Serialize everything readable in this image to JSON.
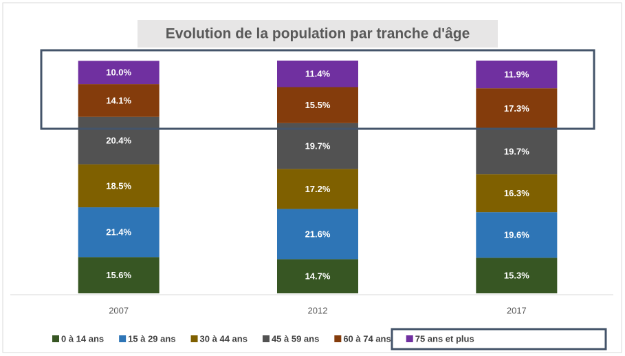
{
  "chart_data": {
    "type": "stacked_bar",
    "title": "Evolution de la population par tranche d'âge",
    "categories": [
      "2007",
      "2012",
      "2017"
    ],
    "series": [
      {
        "name": "0 à 14 ans",
        "color": "#375623",
        "values": [
          15.6,
          14.7,
          15.3
        ],
        "value_labels": [
          "15.6%",
          "14.7%",
          "15.3%"
        ]
      },
      {
        "name": "15 à 29 ans",
        "color": "#2e75b6",
        "values": [
          21.4,
          21.6,
          19.6
        ],
        "value_labels": [
          "21.4%",
          "21.6%",
          "19.6%"
        ]
      },
      {
        "name": "30 à 44 ans",
        "color": "#7f6000",
        "values": [
          18.5,
          17.2,
          16.3
        ],
        "value_labels": [
          "18.5%",
          "17.2%",
          "16.3%"
        ]
      },
      {
        "name": "45 à 59 ans",
        "color": "#525252",
        "values": [
          20.4,
          19.7,
          19.7
        ],
        "value_labels": [
          "20.4%",
          "19.7%",
          "19.7%"
        ]
      },
      {
        "name": "60 à 74 ans",
        "color": "#843c0c",
        "values": [
          14.1,
          15.5,
          17.3
        ],
        "value_labels": [
          "14.1%",
          "15.5%",
          "17.3%"
        ]
      },
      {
        "name": "75 ans et plus",
        "color": "#7030a0",
        "values": [
          10.0,
          11.4,
          11.9
        ],
        "value_labels": [
          "10.0%",
          "11.4%",
          "11.9%"
        ]
      }
    ],
    "legend": "bottom"
  }
}
